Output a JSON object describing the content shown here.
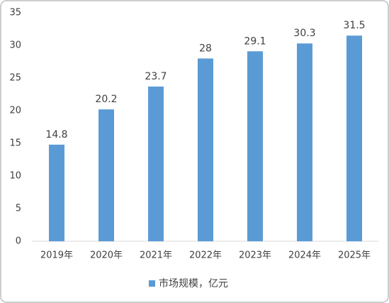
{
  "chart_data": {
    "type": "bar",
    "categories": [
      "2019年",
      "2020年",
      "2021年",
      "2022年",
      "2023年",
      "2024年",
      "2025年"
    ],
    "series": [
      {
        "name": "市场规模，亿元",
        "color": "#5b9bd5",
        "values": [
          14.8,
          20.2,
          23.7,
          28,
          29.1,
          30.3,
          31.5
        ]
      }
    ],
    "ylim": [
      0,
      35
    ],
    "yticks": [
      0,
      5,
      10,
      15,
      20,
      25,
      30,
      35
    ],
    "grid": false,
    "legend": "bottom"
  }
}
